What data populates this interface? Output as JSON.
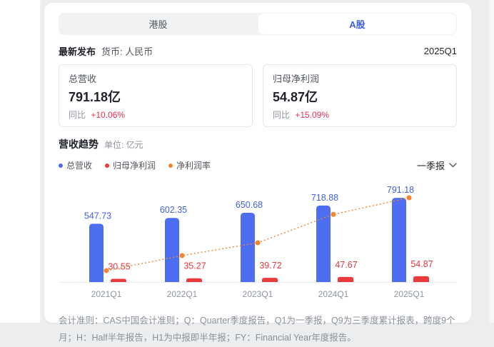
{
  "colors": {
    "accent_blue": "#3d5ce6",
    "bar_blue": "#4d6ef0",
    "bar_label_blue": "#4262e0",
    "bar_red": "#ea3a3e",
    "bar_label_red": "#e6393d",
    "line_orange": "#f2862e",
    "yoy_red": "#e8304d",
    "axis_gray": "#8f959e"
  },
  "tabs": {
    "items": [
      {
        "label": "港股",
        "active": false
      },
      {
        "label": "A股",
        "active": true
      }
    ]
  },
  "release": {
    "label": "最新发布",
    "currency_label": "货币: 人民币",
    "period": "2025Q1"
  },
  "metrics": [
    {
      "title": "总营收",
      "value": "791.18亿",
      "yoy_label": "同比",
      "yoy_value": "+10.06%"
    },
    {
      "title": "归母净利润",
      "value": "54.87亿",
      "yoy_label": "同比",
      "yoy_value": "+15.09%"
    }
  ],
  "trend_section": {
    "title": "营收趋势",
    "unit_label": "单位: 亿元",
    "period_filter": "一季报",
    "chevron_icon": "chevron-down"
  },
  "legend": [
    {
      "label": "总营收",
      "color": "#4d6ef0"
    },
    {
      "label": "归母净利润",
      "color": "#ea3a3e"
    },
    {
      "label": "净利润率",
      "color": "#f2862e"
    }
  ],
  "chart_data": {
    "type": "bar",
    "title": "营收趋势",
    "unit": "亿元",
    "categories": [
      "2021Q1",
      "2022Q1",
      "2023Q1",
      "2024Q1",
      "2025Q1"
    ],
    "series": [
      {
        "name": "总营收",
        "type": "bar",
        "color": "#4d6ef0",
        "label_color": "#4262e0",
        "values": [
          547.73,
          602.35,
          650.68,
          718.88,
          791.18
        ]
      },
      {
        "name": "归母净利润",
        "type": "bar",
        "color": "#ea3a3e",
        "label_color": "#e6393d",
        "values": [
          30.55,
          35.27,
          39.72,
          47.67,
          54.87
        ]
      },
      {
        "name": "净利润率",
        "type": "line",
        "color": "#f2862e",
        "axis": "right",
        "values": [
          5.58,
          5.86,
          6.1,
          6.63,
          6.94
        ],
        "unit": "%"
      }
    ],
    "ylim": [
      0,
      870
    ],
    "grid": false,
    "legend_position": "top"
  },
  "footnote": {
    "text": "会计准则：CAS中国会计准则；Q：Quarter季度报告，Q1为一季报，Q9为三季度累计报表，跨度9个月；H：Half半年报告，H1为中报即半年报；FY：Financial Year年度报告。"
  }
}
